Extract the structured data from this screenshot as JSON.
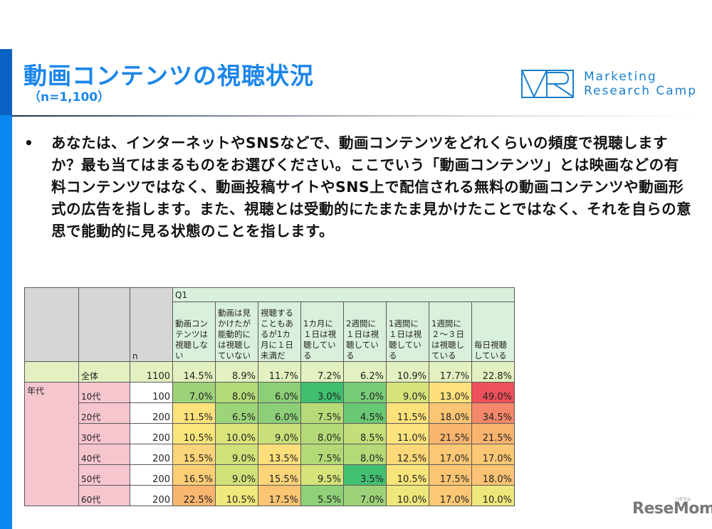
{
  "slide": {
    "title": "動画コンテンツの視聴状況",
    "subtitle": "（n=1,100）",
    "logo": {
      "mark": "VR",
      "line1": "Marketing",
      "line2": "Research Camp",
      "color": "#1b7fcf"
    },
    "question": {
      "bullet": "•",
      "text": "あなたは、インターネットやSNSなどで、動画コンテンツをどれくらいの頻度で視聴しますか？最も当てはまるものをお選びください。ここでいう「動画コンテンツ」とは映画などの有料コンテンツではなく、動画投稿サイトやSNS上で配信される無料の動画コンテンツや動画形式の広告を指します。また、視聴とは受動的にたまたま見かけたことではなく、それを自らの意思で能動的に見る状態のことを指します。"
    },
    "watermark": {
      "text": "ReseMom",
      "kana": "リセマム"
    }
  },
  "chart_data": {
    "type": "table",
    "title": "Q1",
    "n_header": "n",
    "group_label": "年代",
    "columns": [
      "動画コンテンツは視聴しない",
      "動画は見かけたが能動的には視聴していない",
      "視聴することもあるが1カ月に１日未満だ",
      "1カ月に１日は視聴している",
      "2週間に１日は視聴している",
      "1週間に１日は視聴している",
      "1週間に２～３日は視聴している",
      "毎日視聴している"
    ],
    "rows": [
      {
        "label": "全体",
        "n": "1100",
        "values": [
          "14.5%",
          "8.9%",
          "11.7%",
          "7.2%",
          "6.2%",
          "10.9%",
          "17.7%",
          "22.8%"
        ]
      },
      {
        "label": "10代",
        "n": "100",
        "values": [
          "7.0%",
          "8.0%",
          "6.0%",
          "3.0%",
          "5.0%",
          "9.0%",
          "13.0%",
          "49.0%"
        ]
      },
      {
        "label": "20代",
        "n": "200",
        "values": [
          "11.5%",
          "6.5%",
          "6.0%",
          "7.5%",
          "4.5%",
          "11.5%",
          "18.0%",
          "34.5%"
        ]
      },
      {
        "label": "30代",
        "n": "200",
        "values": [
          "10.5%",
          "10.0%",
          "9.0%",
          "8.0%",
          "8.5%",
          "11.0%",
          "21.5%",
          "21.5%"
        ]
      },
      {
        "label": "40代",
        "n": "200",
        "values": [
          "15.5%",
          "9.0%",
          "13.5%",
          "7.5%",
          "8.0%",
          "12.5%",
          "17.0%",
          "17.0%"
        ]
      },
      {
        "label": "50代",
        "n": "200",
        "values": [
          "16.5%",
          "9.0%",
          "15.5%",
          "9.5%",
          "3.5%",
          "10.5%",
          "17.5%",
          "18.0%"
        ]
      },
      {
        "label": "60代",
        "n": "200",
        "values": [
          "22.5%",
          "10.5%",
          "17.5%",
          "5.5%",
          "7.0%",
          "10.0%",
          "17.0%",
          "10.0%"
        ]
      }
    ],
    "cell_colors": [
      [
        "#e2f1bf",
        "#e2f1bf",
        "#e2f1bf",
        "#e2f1bf",
        "#e2f1bf",
        "#e2f1bf",
        "#e2f1bf",
        "#e2f1bf"
      ],
      [
        "#9ed27a",
        "#b4da78",
        "#8ccf78",
        "#3fbf6f",
        "#77cc78",
        "#d6e37a",
        "#fde07c",
        "#f0505a"
      ],
      [
        "#fde27c",
        "#9dd47a",
        "#8ccf78",
        "#b6db78",
        "#69c873",
        "#fde27c",
        "#fcc574",
        "#f5876a"
      ],
      [
        "#f8e67c",
        "#dbe47a",
        "#c9df79",
        "#b4da78",
        "#c4de79",
        "#fde37d",
        "#f9b46e",
        "#f9b46e"
      ],
      [
        "#fcd479",
        "#d0e17a",
        "#fdde7b",
        "#b4da78",
        "#b4da78",
        "#fdd879",
        "#fcc875",
        "#fcc875"
      ],
      [
        "#fcce77",
        "#d0e17a",
        "#fcd479",
        "#d6e37a",
        "#43c072",
        "#f7e57c",
        "#fcc574",
        "#fcc374"
      ],
      [
        "#f9b66f",
        "#f0e87c",
        "#fcc574",
        "#8fd079",
        "#9ed27a",
        "#eee77c",
        "#fcc875",
        "#eee77c"
      ]
    ]
  }
}
